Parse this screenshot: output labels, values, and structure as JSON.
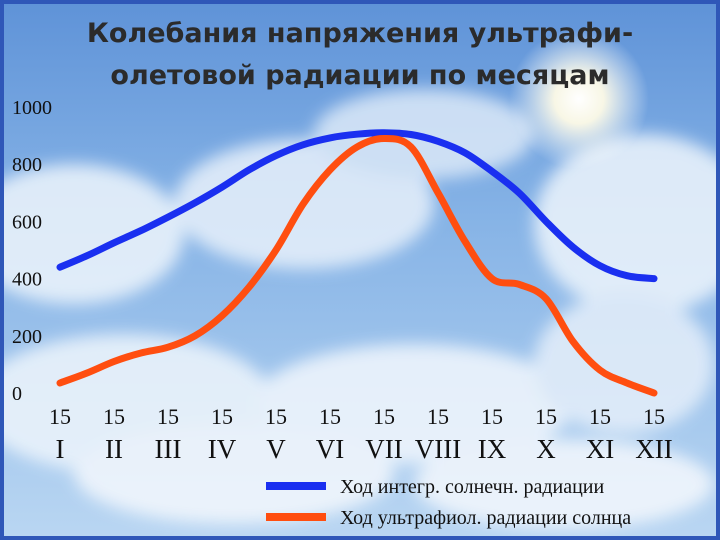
{
  "chart_data": {
    "type": "line",
    "title": "Колебания напряжения ультрафи-\nолетовой радиации по месяцам",
    "title_lines": [
      "Колебания напряжения ультрафи-",
      "олетовой радиации по месяцам"
    ],
    "xlabel": "",
    "ylabel": "",
    "ylim": [
      0,
      1000
    ],
    "y_ticks": [
      "1000",
      "800",
      "600",
      "400",
      "200",
      "0"
    ],
    "x_day_labels": [
      "15",
      "15",
      "15",
      "15",
      "15",
      "15",
      "15",
      "15",
      "15",
      "15",
      "15",
      "15"
    ],
    "categories": [
      "I",
      "II",
      "III",
      "IV",
      "V",
      "VI",
      "VII",
      "VIII",
      "IX",
      "X",
      "XI",
      "XII"
    ],
    "series": [
      {
        "name": "Ход интегр. солнечн. радиации",
        "color": "#1a2ff0",
        "x": [
          0,
          0.5,
          1,
          1.5,
          2,
          2.5,
          3,
          3.5,
          4,
          4.5,
          5,
          5.5,
          6,
          6.5,
          7,
          7.5,
          8,
          8.5,
          9,
          9.5,
          10,
          10.5,
          11
        ],
        "values": [
          440,
          480,
          525,
          568,
          615,
          665,
          720,
          780,
          830,
          868,
          892,
          905,
          910,
          904,
          880,
          840,
          775,
          700,
          600,
          510,
          445,
          410,
          400
        ]
      },
      {
        "name": "Ход ультрафиол. радиации солнца",
        "color": "#ff4e10",
        "x": [
          0,
          0.5,
          1,
          1.5,
          2,
          2.5,
          3,
          3.5,
          4,
          4.5,
          5,
          5.5,
          6,
          6.5,
          7,
          7.5,
          8,
          8.5,
          9,
          9.5,
          10,
          10.5,
          11
        ],
        "values": [
          35,
          70,
          110,
          140,
          160,
          200,
          270,
          370,
          500,
          660,
          780,
          860,
          890,
          860,
          700,
          530,
          400,
          380,
          330,
          180,
          80,
          35,
          0
        ]
      }
    ],
    "legend_placement": "bottom-right"
  }
}
